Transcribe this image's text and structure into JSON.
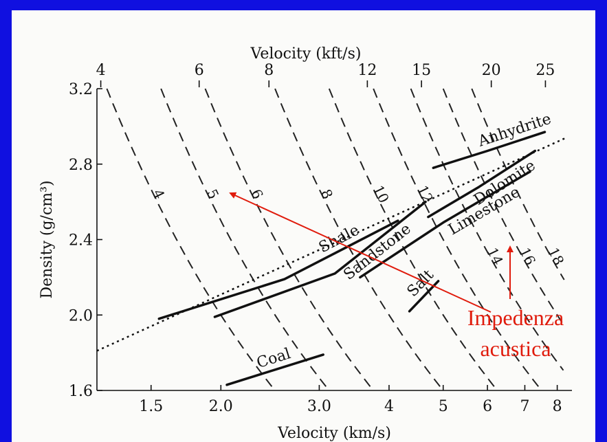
{
  "chart_data": {
    "type": "scatter",
    "title": "",
    "xlabel": "Velocity (km/s)",
    "ylabel": "Density (g/cm³)",
    "x_top_label": "Velocity (kft/s)",
    "x_scale": "log",
    "xlim": [
      1.2,
      8.5
    ],
    "ylim": [
      1.6,
      3.2
    ],
    "x_ticks": [
      {
        "v": 1.5,
        "label": "1.5"
      },
      {
        "v": 2.0,
        "label": "2.0"
      },
      {
        "v": 3.0,
        "label": "3.0"
      },
      {
        "v": 4,
        "label": "4"
      },
      {
        "v": 5,
        "label": "5"
      },
      {
        "v": 6,
        "label": "6"
      },
      {
        "v": 7,
        "label": "7"
      },
      {
        "v": 8,
        "label": "8"
      }
    ],
    "x_top_ticks": [
      {
        "v": 4,
        "label": "4"
      },
      {
        "v": 6,
        "label": "6"
      },
      {
        "v": 8,
        "label": "8"
      },
      {
        "v": 12,
        "label": "12"
      },
      {
        "v": 15,
        "label": "15"
      },
      {
        "v": 20,
        "label": "20"
      },
      {
        "v": 25,
        "label": "25"
      }
    ],
    "y_ticks": [
      {
        "v": 1.6,
        "label": "1.6"
      },
      {
        "v": 2.0,
        "label": "2.0"
      },
      {
        "v": 2.4,
        "label": "2.4"
      },
      {
        "v": 2.8,
        "label": "2.8"
      },
      {
        "v": 3.2,
        "label": "3.2"
      }
    ],
    "series": [
      {
        "name": "Shale",
        "x": [
          1.55,
          2.6,
          4.15
        ],
        "y": [
          1.98,
          2.19,
          2.5
        ]
      },
      {
        "name": "Sandstone",
        "x": [
          1.95,
          3.2,
          4.65
        ],
        "y": [
          1.99,
          2.22,
          2.6
        ]
      },
      {
        "name": "Limestone",
        "x": [
          3.55,
          5.0,
          7.15
        ],
        "y": [
          2.2,
          2.49,
          2.76
        ]
      },
      {
        "name": "Dolomite",
        "x": [
          4.7,
          5.8,
          7.3
        ],
        "y": [
          2.52,
          2.68,
          2.87
        ]
      },
      {
        "name": "Anhydrite",
        "x": [
          4.8,
          6.0,
          7.6
        ],
        "y": [
          2.78,
          2.87,
          2.97
        ]
      },
      {
        "name": "Salt",
        "x": [
          4.35,
          4.9
        ],
        "y": [
          2.02,
          2.18
        ]
      },
      {
        "name": "Coal",
        "x": [
          2.05,
          3.05
        ],
        "y": [
          1.63,
          1.79
        ]
      }
    ],
    "trend_line": {
      "x": [
        1.2,
        8.3
      ],
      "y": [
        1.81,
        2.94
      ]
    },
    "impedance_levels": [
      4,
      5,
      6,
      8,
      10,
      12,
      14,
      16,
      18
    ],
    "annotations": [
      "Impedenza",
      "acustica"
    ],
    "grid": false
  }
}
